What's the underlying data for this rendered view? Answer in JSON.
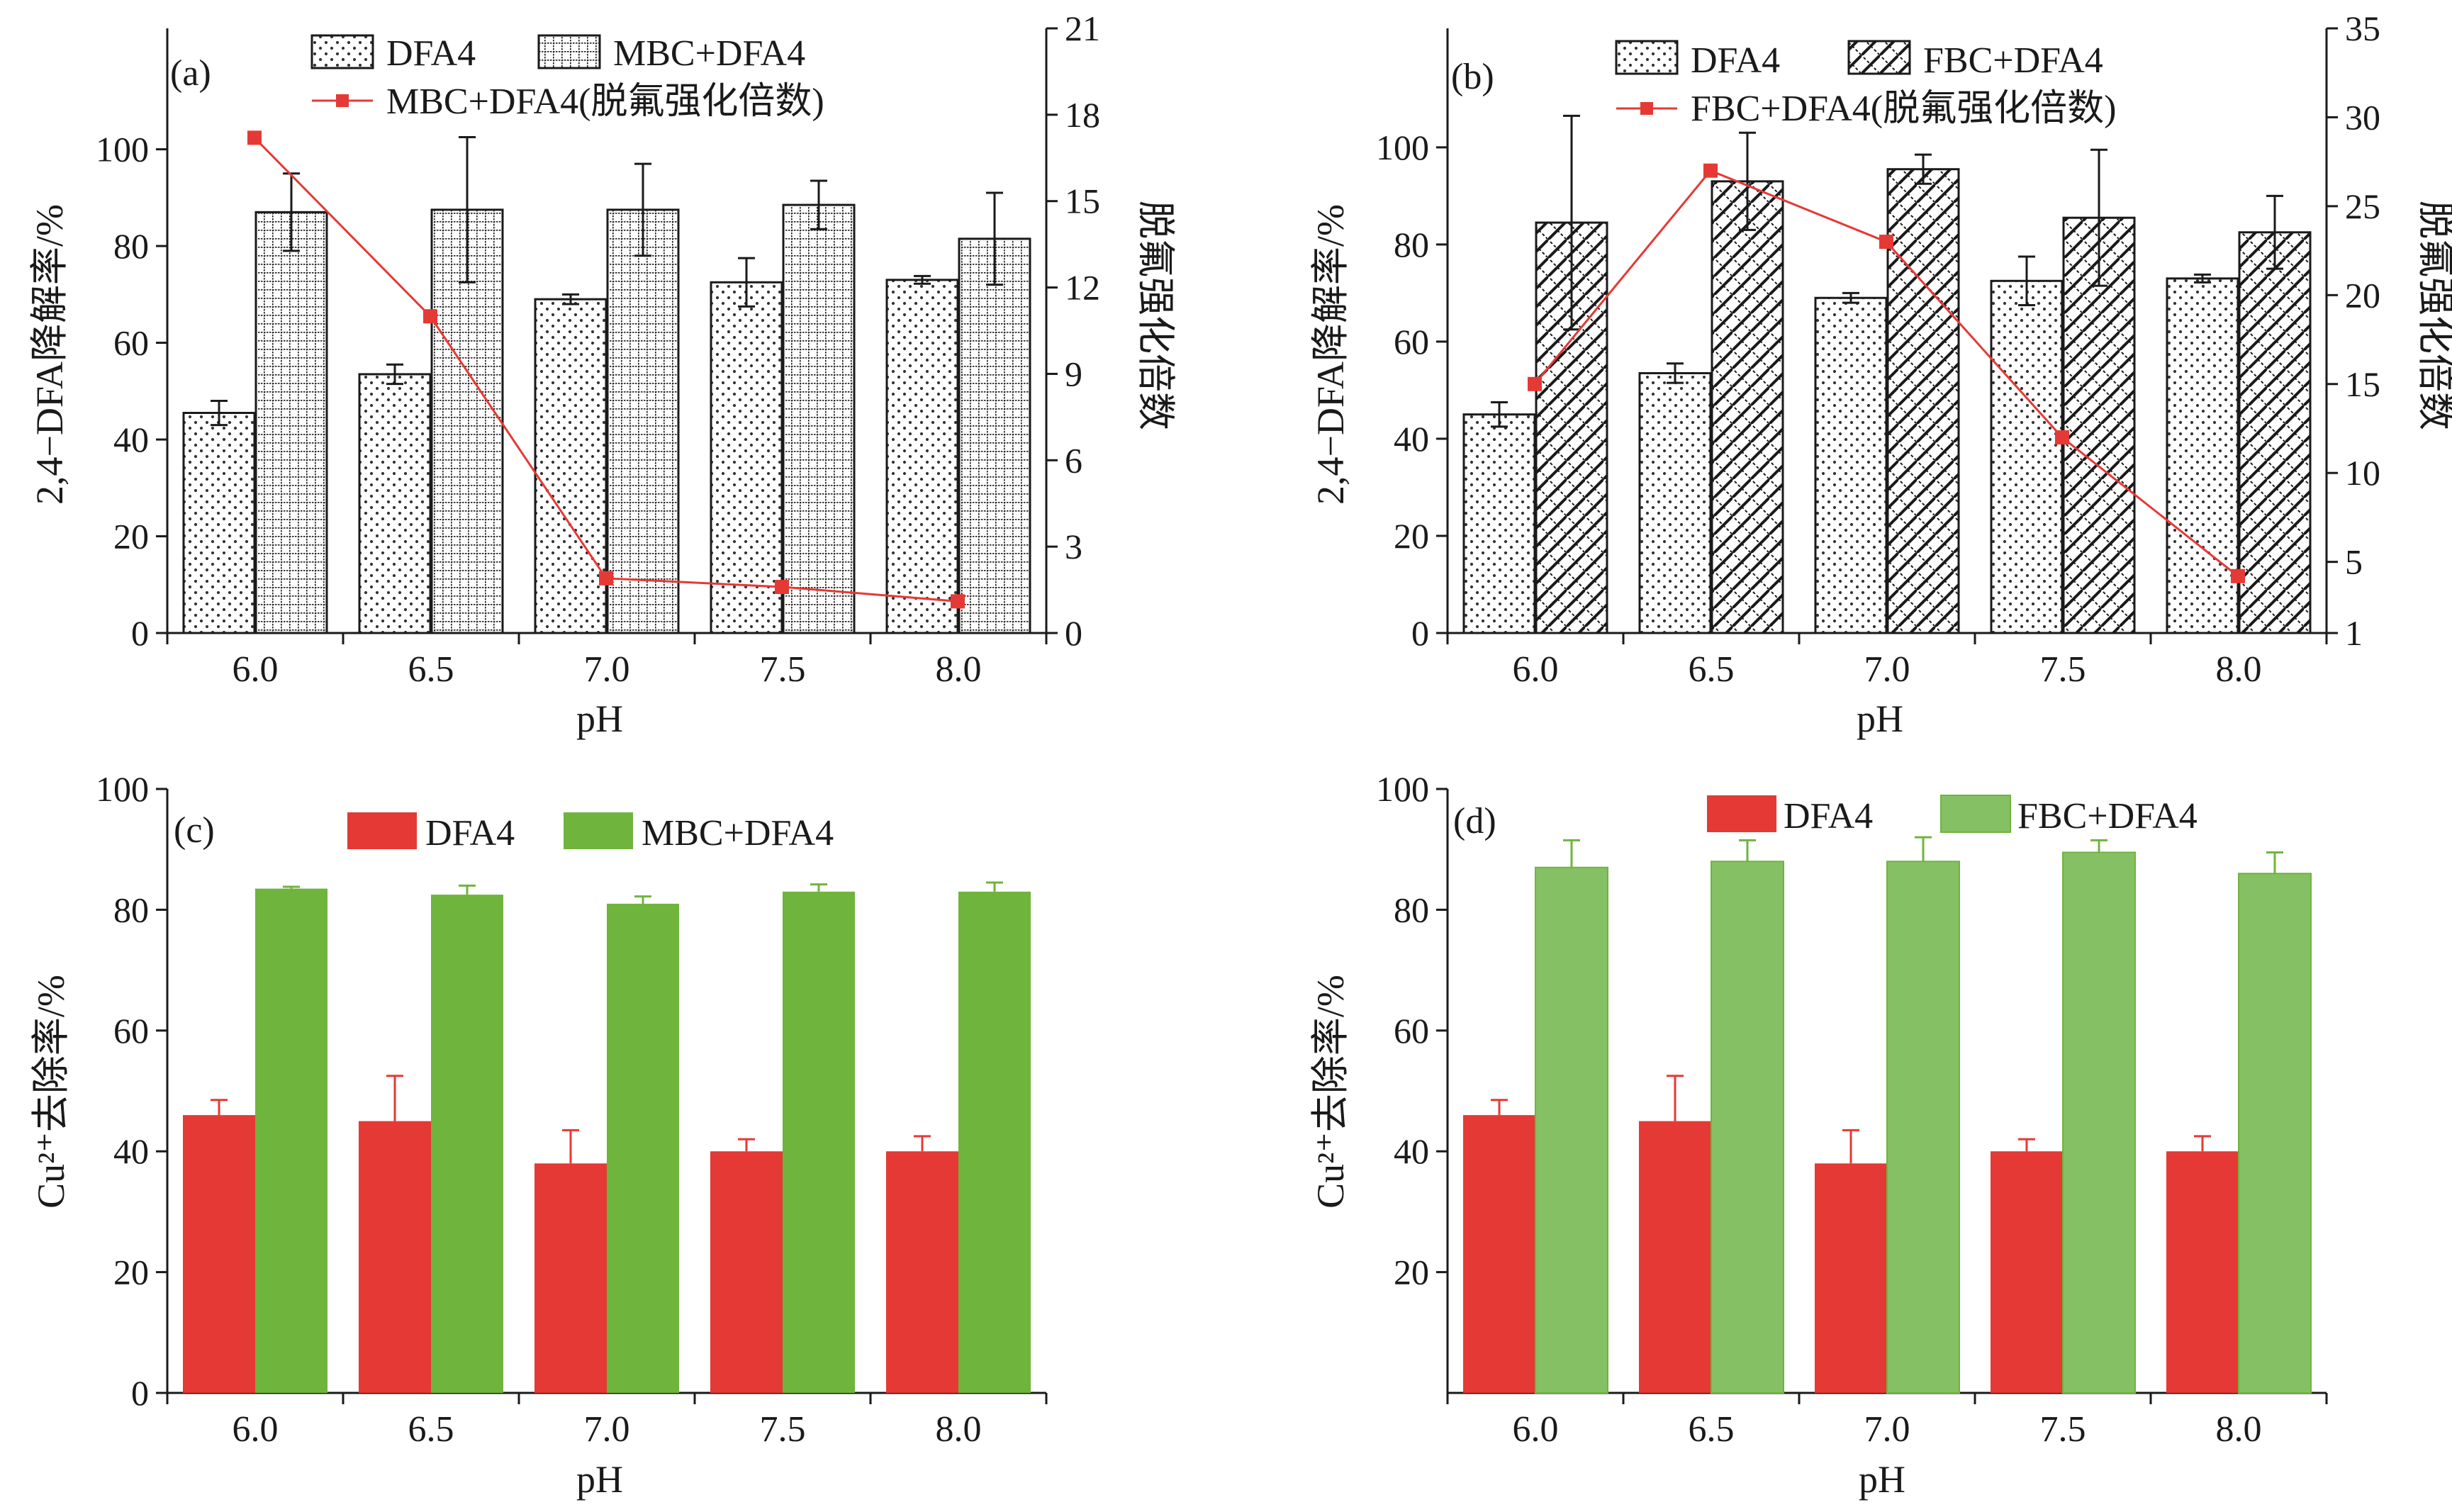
{
  "figure": {
    "x_axis_label": "pH",
    "categories": [
      "6.0",
      "6.5",
      "7.0",
      "7.5",
      "8.0"
    ],
    "colors": {
      "axis": "#1a1a1a",
      "line_marker": "#e53935",
      "c_red_bar": "#e53935",
      "c_green_bar": "#6fb43c",
      "d_red_bar": "#e53935",
      "d_green_bar": "#86c065",
      "d_green_edge": "#6fb43c"
    }
  },
  "chart_data": [
    {
      "panel": "(a)",
      "type": "bar",
      "categories": [
        "6.0",
        "6.5",
        "7.0",
        "7.5",
        "8.0"
      ],
      "xlabel": "pH",
      "ylabel": "2,4−DFA降解率/%",
      "ylim": [
        0,
        125
      ],
      "yticks": [
        0,
        20,
        40,
        60,
        80,
        100
      ],
      "y2label": "脱氟强化倍数",
      "y2lim": [
        0,
        21
      ],
      "y2ticks": [
        "0",
        "3",
        "6",
        "9",
        "12",
        "15",
        "18",
        "21"
      ],
      "legend_position": "top",
      "series": [
        {
          "name": "DFA4",
          "type": "bar",
          "pattern": "dots",
          "values": [
            45.5,
            53.5,
            69,
            72.5,
            73
          ],
          "errors": [
            2.5,
            2,
            1,
            5,
            0.8
          ]
        },
        {
          "name": "MBC+DFA4",
          "type": "bar",
          "pattern": "grid",
          "values": [
            87,
            87.5,
            87.5,
            88.5,
            81.5
          ],
          "errors": [
            8,
            15,
            9.5,
            5,
            9.5
          ]
        },
        {
          "name": "MBC+DFA4(脱氟强化倍数)",
          "type": "line",
          "axis": "right",
          "values": [
            17.2,
            11.0,
            1.9,
            1.6,
            1.1
          ]
        }
      ]
    },
    {
      "panel": "(b)",
      "type": "bar",
      "categories": [
        "6.0",
        "6.5",
        "7.0",
        "7.5",
        "8.0"
      ],
      "xlabel": "pH",
      "ylabel": "2,4−DFA降解率/%",
      "ylim": [
        0,
        124.5
      ],
      "yticks": [
        0,
        20,
        40,
        60,
        80,
        100
      ],
      "y2label": "脱氟强化倍数",
      "y2lim": [
        1,
        35
      ],
      "y2ticks": [
        "1",
        "5",
        "10",
        "15",
        "20",
        "25",
        "30",
        "35"
      ],
      "legend_position": "top",
      "series": [
        {
          "name": "DFA4",
          "type": "bar",
          "pattern": "dots",
          "values": [
            45,
            53.5,
            69,
            72.5,
            73
          ],
          "errors": [
            2.5,
            2,
            1,
            5,
            0.8
          ]
        },
        {
          "name": "FBC+DFA4",
          "type": "bar",
          "pattern": "crosshatch",
          "values": [
            84.5,
            93,
            95.5,
            85.5,
            82.5
          ],
          "errors": [
            22,
            10,
            3,
            14,
            7.5
          ]
        },
        {
          "name": "FBC+DFA4(脱氟强化倍数)",
          "type": "line",
          "axis": "right",
          "values": [
            15,
            27,
            23,
            12,
            4.2
          ]
        }
      ]
    },
    {
      "panel": "(c)",
      "type": "bar",
      "categories": [
        "6.0",
        "6.5",
        "7.0",
        "7.5",
        "8.0"
      ],
      "xlabel": "",
      "ylabel": "Cu²⁺去除率/%",
      "ylim": [
        0,
        100
      ],
      "yticks": [
        0,
        20,
        40,
        60,
        80,
        100
      ],
      "legend_position": "top",
      "series": [
        {
          "name": "DFA4",
          "values": [
            46,
            45,
            38,
            40,
            40
          ],
          "errors": [
            2.5,
            7.5,
            5.5,
            2,
            2.5
          ]
        },
        {
          "name": "MBC+DFA4",
          "values": [
            83.5,
            82.5,
            81,
            83,
            83
          ],
          "errors": [
            0.3,
            1.5,
            1.2,
            1.2,
            1.5
          ]
        }
      ]
    },
    {
      "panel": "(d)",
      "type": "bar",
      "categories": [
        "6.0",
        "6.5",
        "7.0",
        "7.5",
        "8.0"
      ],
      "xlabel": "pH",
      "ylabel": "Cu²⁺去除率/%",
      "ylim": [
        0,
        100
      ],
      "yticks": [
        20,
        40,
        60,
        80,
        100
      ],
      "legend_position": "top",
      "series": [
        {
          "name": "DFA4",
          "values": [
            46,
            45,
            38,
            40,
            40
          ],
          "errors": [
            2.5,
            7.5,
            5.5,
            2,
            2.5
          ]
        },
        {
          "name": "FBC+DFA4",
          "values": [
            87,
            88,
            88,
            89.5,
            86
          ],
          "errors": [
            4.5,
            3.5,
            4,
            2,
            3.5
          ]
        }
      ]
    }
  ]
}
